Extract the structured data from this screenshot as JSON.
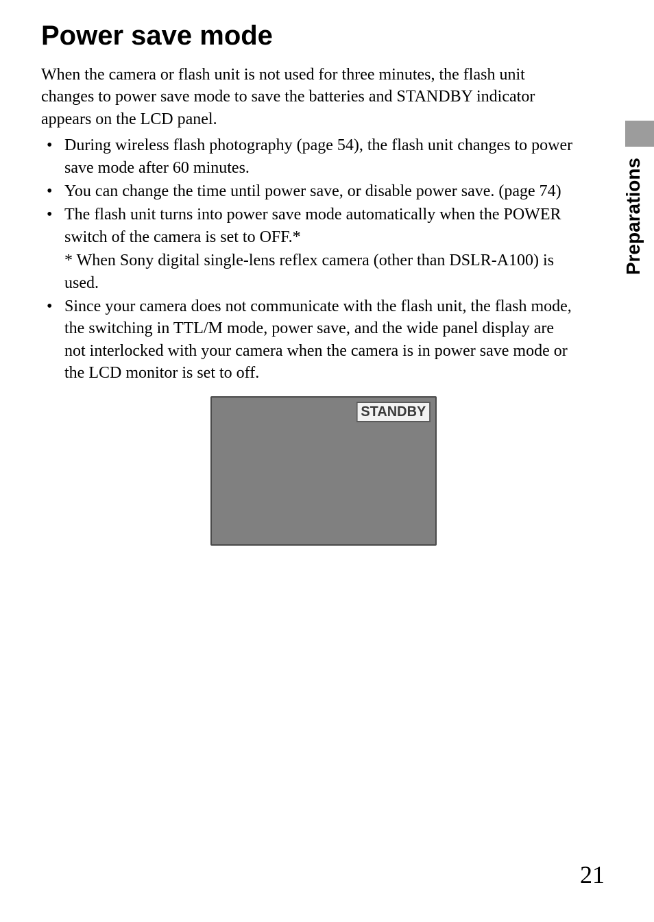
{
  "heading": "Power save mode",
  "intro": "When the camera or flash unit is not used for three minutes, the flash unit changes to power save mode to save the batteries and STANDBY indicator appears on the LCD panel.",
  "bullets": {
    "b1": "During wireless flash photography (page 54), the flash unit changes to power save mode after 60 minutes.",
    "b2": "You can change the time until power save, or disable power save. (page 74)",
    "b3": "The flash unit turns into power save mode automatically when the POWER switch of the camera is set to OFF.*",
    "b3_footnote": "* When Sony digital single-lens reflex camera (other than DSLR-A100) is used.",
    "b4": "Since your camera does not communicate with the flash unit, the flash mode, the switching in TTL/M mode, power save, and the wide panel display are not interlocked with your camera when the camera is in power save mode or the LCD monitor is set to off."
  },
  "lcd": {
    "standby_label": "STANDBY",
    "bg_color": "#808080",
    "badge_bg": "#f2f2f2",
    "badge_border": "#5a5a5a"
  },
  "side": {
    "section_label": "Preparations",
    "tab_color": "#9c9c9c"
  },
  "page_number": "21"
}
